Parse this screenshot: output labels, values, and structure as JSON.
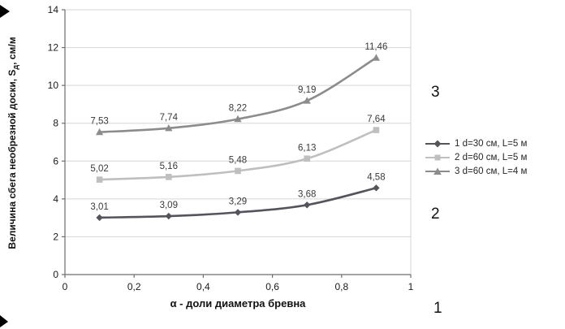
{
  "figure": {
    "background": "#ffffff"
  },
  "chart_data": {
    "type": "line",
    "title": "",
    "xlabel": "α - доли диаметра бревна",
    "ylabel": "Величина сбега необрезной доски, Sд, см/м",
    "ylabel_pre": "Величина сбега необрезной доски, S",
    "ylabel_sub": "д",
    "ylabel_post": ", см/м",
    "xlim": [
      0,
      1
    ],
    "ylim": [
      0,
      14
    ],
    "x_tick_values": [
      0,
      0.2,
      0.4,
      0.6,
      0.8,
      1
    ],
    "x_tick_labels": [
      "0",
      "0,2",
      "0,4",
      "0,6",
      "0,8",
      "1"
    ],
    "y_tick_values": [
      0,
      2,
      4,
      6,
      8,
      10,
      12,
      14
    ],
    "y_tick_labels": [
      "0",
      "2",
      "4",
      "6",
      "8",
      "10",
      "12",
      "14"
    ],
    "grid": "horizontal",
    "legend_position": "right",
    "x": [
      0.1,
      0.3,
      0.5,
      0.7,
      0.9
    ],
    "series": [
      {
        "name": "1 d=30 см, L=5 м",
        "marker": "diamond",
        "color": "#54545c",
        "values": [
          3.01,
          3.09,
          3.29,
          3.68,
          4.58
        ],
        "point_labels": [
          "3,01",
          "3,09",
          "3,29",
          "3,68",
          "4,58"
        ]
      },
      {
        "name": "2 d=60 см, L=5 м",
        "marker": "square",
        "color": "#bfbfbf",
        "values": [
          5.02,
          5.16,
          5.48,
          6.13,
          7.64
        ],
        "point_labels": [
          "5,02",
          "5,16",
          "5,48",
          "6,13",
          "7,64"
        ]
      },
      {
        "name": "3 d=60 см, L=4 м",
        "marker": "triangle",
        "color": "#8c8c8c",
        "values": [
          7.53,
          7.74,
          8.22,
          9.19,
          11.46
        ],
        "point_labels": [
          "7,53",
          "7,74",
          "8,22",
          "9,19",
          "11,46"
        ]
      }
    ]
  },
  "annotations": [
    {
      "text": "3"
    },
    {
      "text": "2"
    },
    {
      "text": "1"
    }
  ]
}
